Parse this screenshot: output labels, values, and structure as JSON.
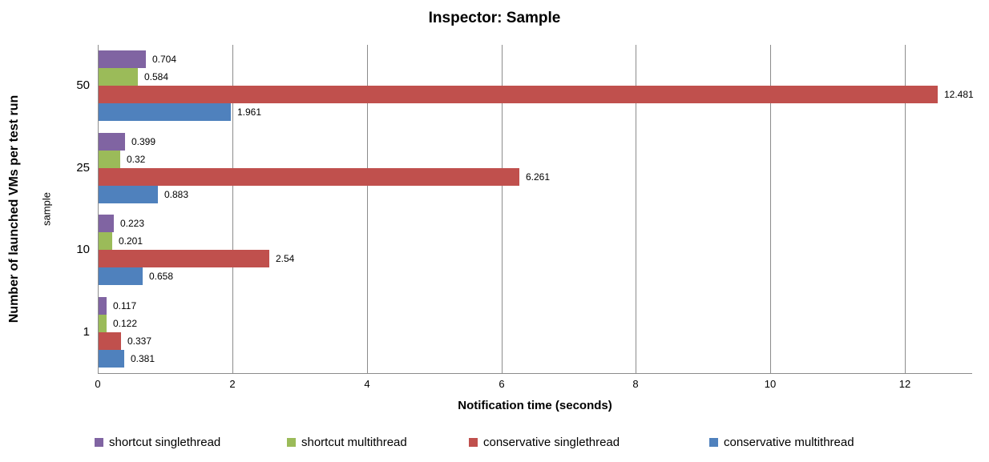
{
  "chart_data": {
    "type": "bar",
    "orientation": "horizontal",
    "title": "Inspector: Sample",
    "xlabel": "Notification time (seconds)",
    "ylabel": "Number of launched VMs per test run",
    "ylabel_inner": "sample",
    "categories": [
      "50",
      "25",
      "10",
      "1"
    ],
    "series": [
      {
        "name": "shortcut singlethread",
        "color": "#8064A2",
        "values": [
          "0.704",
          "0.399",
          "0.223",
          "0.117"
        ]
      },
      {
        "name": "shortcut multithread",
        "color": "#9BBB59",
        "values": [
          "0.584",
          "0.32",
          "0.201",
          "0.122"
        ]
      },
      {
        "name": "conservative singlethread",
        "color": "#C0504D",
        "values": [
          "12.481",
          "6.261",
          "2.54",
          "0.337"
        ]
      },
      {
        "name": "conservative multithread",
        "color": "#4F81BD",
        "values": [
          "1.961",
          "0.883",
          "0.658",
          "0.381"
        ]
      }
    ],
    "xlim": [
      0,
      13
    ],
    "xticks": [
      0,
      2,
      4,
      6,
      8,
      10,
      12
    ],
    "grid": "vertical",
    "gridline_color": "#8c8c8c",
    "legend_position": "bottom"
  }
}
